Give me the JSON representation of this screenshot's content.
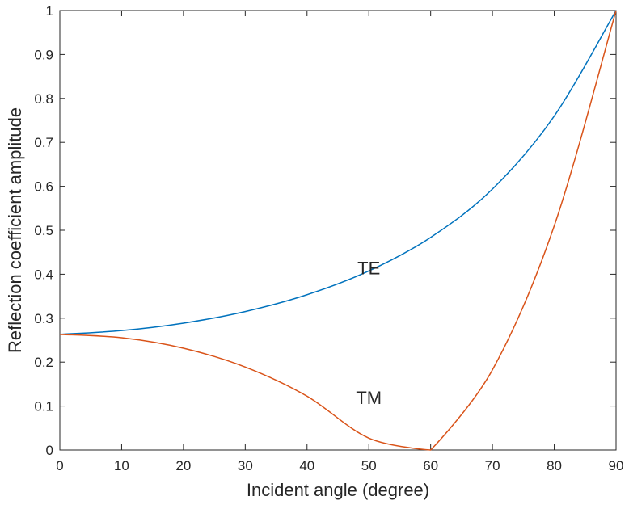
{
  "chart_data": {
    "type": "line",
    "title": "",
    "xlabel": "Incident angle (degree)",
    "ylabel": "Reflection coefficient amplitude",
    "xlim": [
      0,
      90
    ],
    "ylim": [
      0,
      1
    ],
    "xticks": [
      0,
      10,
      20,
      30,
      40,
      50,
      60,
      70,
      80,
      90
    ],
    "yticks": [
      0,
      0.1,
      0.2,
      0.3,
      0.4,
      0.5,
      0.6,
      0.7,
      0.8,
      0.9,
      1
    ],
    "xtick_labels": [
      "0",
      "10",
      "20",
      "30",
      "40",
      "50",
      "60",
      "70",
      "80",
      "90"
    ],
    "ytick_labels": [
      "0",
      "0.1",
      "0.2",
      "0.3",
      "0.4",
      "0.5",
      "0.6",
      "0.7",
      "0.8",
      "0.9",
      "1"
    ],
    "grid": false,
    "legend": "none",
    "x": [
      0,
      10,
      20,
      30,
      40,
      50,
      60,
      70,
      80,
      90
    ],
    "series": [
      {
        "name": "TE",
        "color": "#0072BD",
        "values": [
          0.2632,
          0.2718,
          0.2887,
          0.3151,
          0.3534,
          0.4075,
          0.4838,
          0.5938,
          0.7599,
          1.0
        ]
      },
      {
        "name": "TM",
        "color": "#D95319",
        "values": [
          0.2632,
          0.2555,
          0.2316,
          0.1888,
          0.1225,
          0.0271,
          0.0,
          0.1825,
          0.5102,
          1.0
        ]
      }
    ],
    "annotations": [
      {
        "text": "TE",
        "x": 50,
        "y": 0.4
      },
      {
        "text": "TM",
        "x": 50,
        "y": 0.105
      }
    ]
  }
}
